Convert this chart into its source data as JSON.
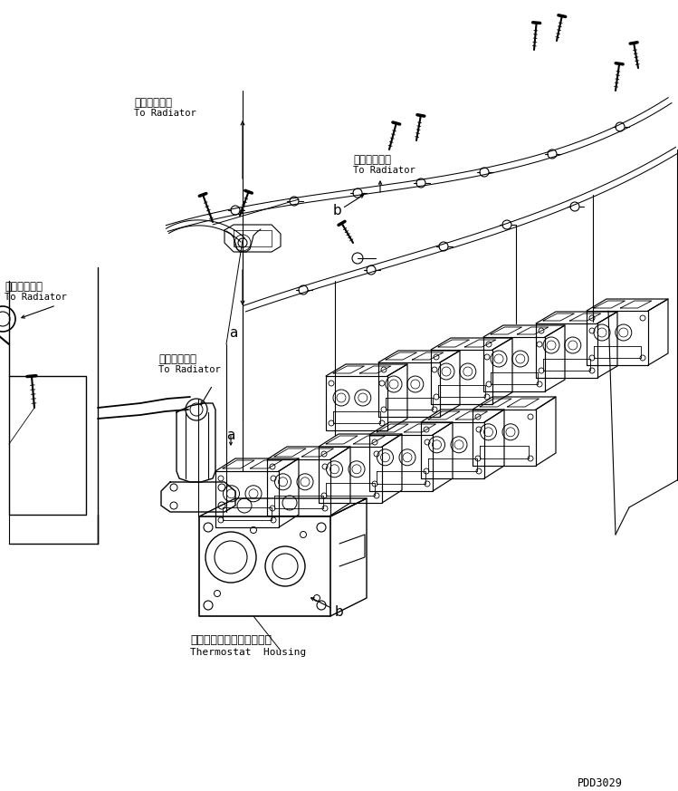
{
  "bg_color": "#ffffff",
  "line_color": "#000000",
  "fig_width": 7.49,
  "fig_height": 8.73,
  "dpi": 100,
  "watermark": "PDD3029",
  "labels": {
    "rad_top_jp": "ラジエータへ",
    "rad_top_en": "To Radiator",
    "rad_center_jp": "ラジエータへ",
    "rad_center_en": "To Radiator",
    "rad_left_jp": "ラジエータへ",
    "rad_left_en": "To Radiator",
    "rad_mid_jp": "ラジエータへ",
    "rad_mid_en": "To Radiator",
    "thermo_jp": "サーモスタットハウジング",
    "thermo_en": "Thermostat  Housing",
    "a": "a",
    "b": "b"
  }
}
